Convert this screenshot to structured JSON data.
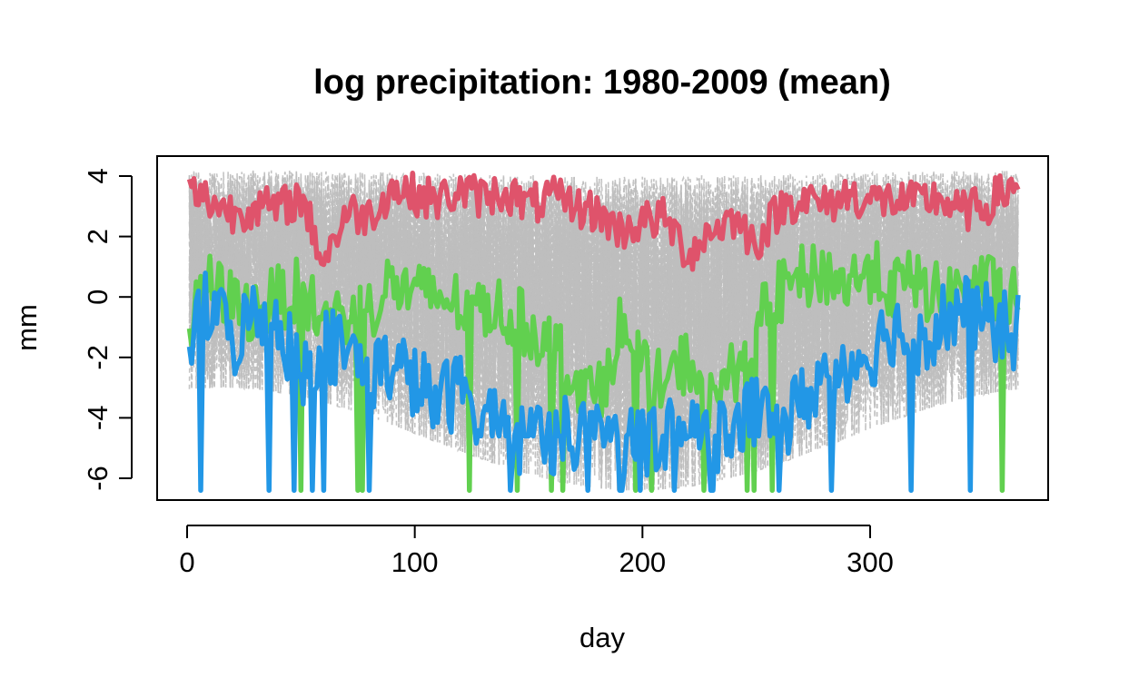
{
  "chart_data": {
    "type": "line",
    "title": "log precipitation: 1980-2009 (mean)",
    "xlabel": "day",
    "ylabel": "mm",
    "xlim": [
      0,
      365
    ],
    "ylim": [
      -6.6,
      4.3
    ],
    "x_ticks": [
      0,
      100,
      200,
      300
    ],
    "y_ticks": [
      -6,
      -4,
      -2,
      0,
      2,
      4
    ],
    "background_series": {
      "description_count": 30,
      "color": "#BEBEBE",
      "line_style": "dashed",
      "value_range_by_season": {
        "winter_upper": 4.2,
        "winter_lower": -3.0,
        "summer_upper": 4.0,
        "summer_lower": -6.4
      }
    },
    "series": [
      {
        "color": "#DF536B",
        "x_anchor": [
          1,
          10,
          20,
          30,
          40,
          50,
          60,
          70,
          80,
          90,
          100,
          110,
          120,
          130,
          140,
          150,
          160,
          170,
          180,
          190,
          200,
          210,
          220,
          230,
          240,
          250,
          260,
          270,
          280,
          290,
          300,
          310,
          320,
          330,
          340,
          350,
          365
        ],
        "y_anchor": [
          3.5,
          3.2,
          2.8,
          3.0,
          2.9,
          3.3,
          1.2,
          2.8,
          2.7,
          3.6,
          3.4,
          3.2,
          3.5,
          3.3,
          3.5,
          3.0,
          3.3,
          3.0,
          2.8,
          2.2,
          2.5,
          2.6,
          1.4,
          2.2,
          2.6,
          1.8,
          2.9,
          3.3,
          3.0,
          3.4,
          3.2,
          3.2,
          3.1,
          3.3,
          2.8,
          3.0,
          3.8
        ]
      },
      {
        "color": "#61D04F",
        "x_anchor": [
          1,
          10,
          20,
          30,
          40,
          50,
          60,
          70,
          80,
          90,
          100,
          110,
          120,
          130,
          140,
          150,
          160,
          170,
          180,
          190,
          200,
          210,
          220,
          230,
          240,
          250,
          260,
          270,
          280,
          290,
          300,
          310,
          320,
          330,
          340,
          350,
          365
        ],
        "y_anchor": [
          -1.0,
          0.4,
          -0.2,
          -0.5,
          0.0,
          0.2,
          -0.8,
          -0.6,
          -0.4,
          0.5,
          0.0,
          0.1,
          -0.3,
          -0.2,
          -0.5,
          -1.0,
          -1.5,
          -2.5,
          -3.5,
          -1.0,
          -2.5,
          -3.0,
          -2.0,
          -3.5,
          -2.5,
          -1.0,
          0.1,
          0.6,
          0.8,
          0.4,
          0.9,
          0.3,
          0.5,
          0.0,
          0.2,
          0.4,
          -0.2
        ]
      },
      {
        "color": "#2297E6",
        "x_anchor": [
          1,
          10,
          20,
          30,
          40,
          50,
          60,
          70,
          80,
          90,
          100,
          110,
          120,
          130,
          140,
          150,
          160,
          170,
          180,
          190,
          200,
          210,
          220,
          230,
          240,
          250,
          260,
          270,
          280,
          290,
          300,
          310,
          320,
          330,
          340,
          350,
          365
        ],
        "y_anchor": [
          -1.4,
          -0.2,
          -1.5,
          -0.5,
          -0.8,
          -2.5,
          -1.5,
          -1.8,
          -2.5,
          -2.2,
          -2.8,
          -3.5,
          -3.0,
          -3.8,
          -4.5,
          -4.6,
          -4.6,
          -4.6,
          -4.6,
          -4.6,
          -4.6,
          -4.6,
          -4.6,
          -4.6,
          -4.5,
          -3.8,
          -4.5,
          -3.5,
          -2.5,
          -2.2,
          -1.8,
          -1.0,
          -1.5,
          -0.8,
          -0.5,
          -0.8,
          -1.2
        ]
      }
    ],
    "grid": false
  }
}
